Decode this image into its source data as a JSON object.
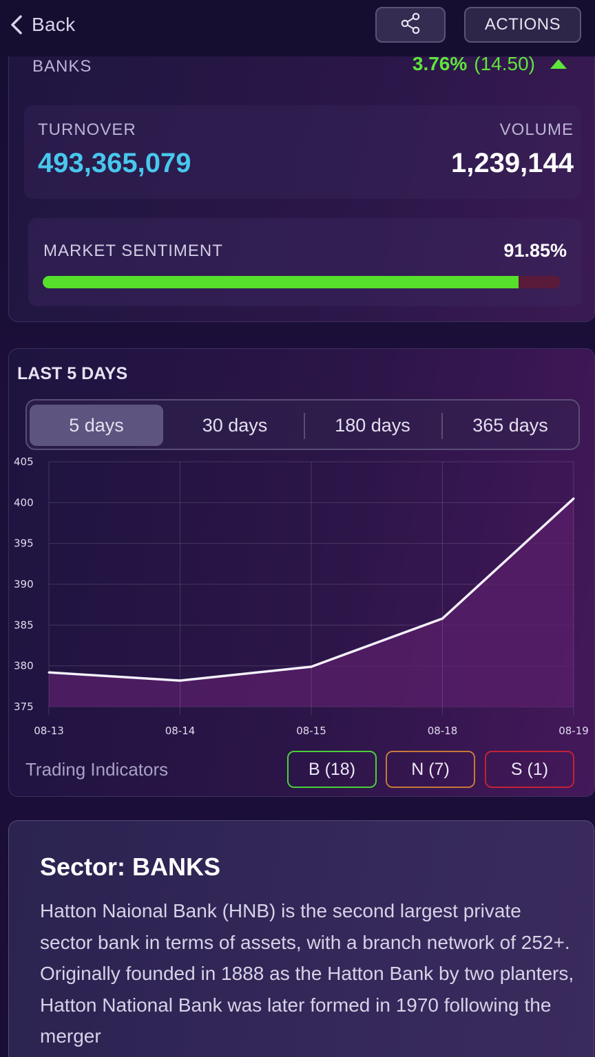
{
  "nav": {
    "back_label": "Back",
    "actions_label": "ACTIONS"
  },
  "sector": {
    "name": "BANKS",
    "change_pct": "3.76%",
    "change_abs": "(14.50)",
    "direction": "up"
  },
  "stats": {
    "turnover_label": "TURNOVER",
    "turnover_value": "493,365,079",
    "volume_label": "VOLUME",
    "volume_value": "1,239,144"
  },
  "sentiment": {
    "label": "MARKET SENTIMENT",
    "value_text": "91.85%",
    "value": 91.85
  },
  "chart_section": {
    "title": "LAST 5 DAYS",
    "ranges": [
      "5 days",
      "30 days",
      "180 days",
      "365 days"
    ],
    "selected_range": "5 days"
  },
  "chart_data": {
    "type": "area",
    "title": "LAST 5 DAYS",
    "x": [
      "08-13",
      "08-14",
      "08-15",
      "08-18",
      "08-19"
    ],
    "y": [
      379.2,
      378.2,
      379.9,
      385.8,
      400.5
    ],
    "ylim": [
      375,
      405
    ],
    "yticks": [
      375,
      380,
      385,
      390,
      395,
      400,
      405
    ],
    "grid": true,
    "line_color": "#f4f0fb",
    "fill_color": "#5a1f6a"
  },
  "indicators": {
    "label": "Trading Indicators",
    "buy": "B (18)",
    "neutral": "N (7)",
    "sell": "S (1)"
  },
  "description": {
    "title": "Sector: BANKS",
    "body": "Hatton Naional Bank (HNB) is the second largest private sector bank in terms of assets, with a branch network of 252+. Originally founded in 1888 as the Hatton Bank by two planters, Hatton National Bank was later formed in 1970 following the merger"
  },
  "colors": {
    "positive": "#5fe63b",
    "turnover": "#48c8ee",
    "negative_bar": "#5a1a3a",
    "buy_border": "#4ad13a",
    "neutral_border": "#c7783a",
    "sell_border": "#c42236"
  }
}
